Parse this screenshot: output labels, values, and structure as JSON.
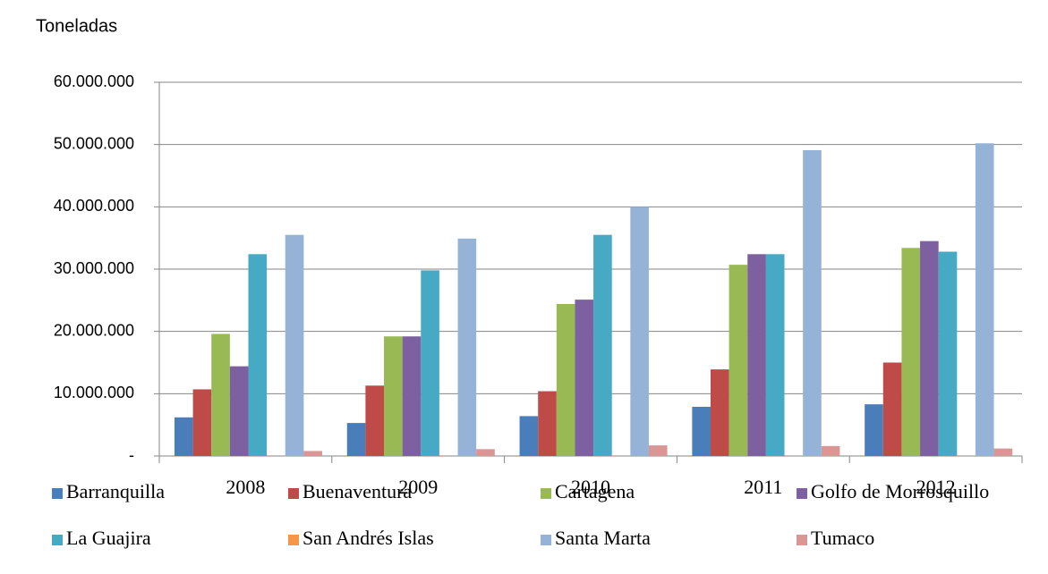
{
  "chart_data": {
    "type": "bar",
    "title": "Toneladas",
    "categories": [
      "2008",
      "2009",
      "2010",
      "2011",
      "2012"
    ],
    "series": [
      {
        "name": "Barranquilla",
        "color": "#4a7ebb",
        "values": [
          6200000,
          5300000,
          6400000,
          7900000,
          8300000
        ]
      },
      {
        "name": "Buenaventura",
        "color": "#be4b48",
        "values": [
          10700000,
          11300000,
          10400000,
          13900000,
          15000000
        ]
      },
      {
        "name": "Cartagena",
        "color": "#98b954",
        "values": [
          19600000,
          19200000,
          24400000,
          30700000,
          33400000
        ]
      },
      {
        "name": "Golfo de Morrosquillo",
        "color": "#7d60a0",
        "values": [
          14400000,
          19200000,
          25100000,
          32400000,
          34500000
        ]
      },
      {
        "name": "La Guajira",
        "color": "#46aac5",
        "values": [
          32400000,
          29800000,
          35500000,
          32400000,
          32800000
        ]
      },
      {
        "name": "San Andrés Islas",
        "color": "#f79646",
        "values": [
          0,
          0,
          0,
          0,
          0
        ]
      },
      {
        "name": "Santa Marta",
        "color": "#95b3d7",
        "values": [
          35500000,
          34900000,
          40000000,
          49100000,
          50200000
        ]
      },
      {
        "name": "Tumaco",
        "color": "#d99694",
        "values": [
          800000,
          1100000,
          1700000,
          1600000,
          1200000
        ]
      }
    ],
    "ylim": [
      0,
      60000000
    ],
    "yticks": [
      {
        "value": 0,
        "label": "-"
      },
      {
        "value": 10000000,
        "label": "10.000.000"
      },
      {
        "value": 20000000,
        "label": "20.000.000"
      },
      {
        "value": 30000000,
        "label": "30.000.000"
      },
      {
        "value": 40000000,
        "label": "40.000.000"
      },
      {
        "value": 50000000,
        "label": "50.000.000"
      },
      {
        "value": 60000000,
        "label": "60.000.000"
      }
    ],
    "grid": true,
    "legend": "bottom"
  }
}
